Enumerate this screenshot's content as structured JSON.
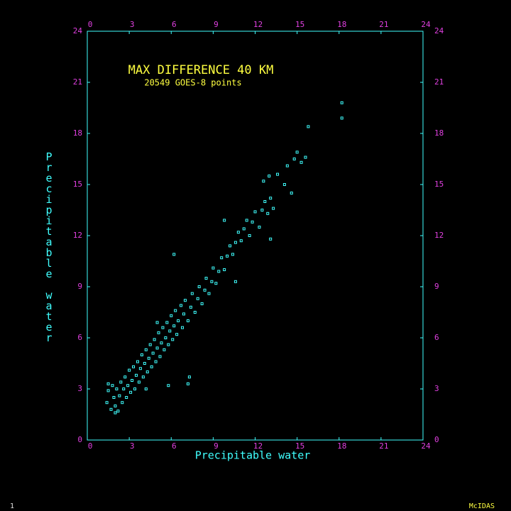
{
  "chart_data": {
    "type": "scatter",
    "title": "MAX DIFFERENCE 40 KM",
    "subtitle": "20549 GOES-8 points",
    "x_label": "Precipitable water",
    "y_label": "Precipitable water",
    "color": "#40ffff",
    "xlim": [
      0,
      24
    ],
    "ylim": [
      0,
      24
    ],
    "xticks": [
      0,
      3,
      6,
      9,
      12,
      15,
      18,
      21,
      24
    ],
    "yticks": [
      0,
      3,
      6,
      9,
      12,
      15,
      18,
      21,
      24
    ],
    "grid": false,
    "x": [
      1.4,
      1.5,
      1.7,
      1.8,
      1.9,
      2.0,
      2.1,
      2.2,
      2.3,
      2.4,
      2.5,
      2.6,
      2.7,
      2.8,
      2.9,
      3.0,
      3.1,
      3.2,
      3.3,
      3.4,
      3.5,
      3.6,
      3.7,
      3.8,
      3.9,
      4.0,
      4.1,
      4.2,
      4.3,
      4.4,
      4.5,
      4.6,
      4.7,
      4.8,
      4.9,
      5.0,
      5.1,
      5.2,
      5.3,
      5.4,
      5.5,
      5.6,
      5.7,
      5.8,
      5.9,
      6.0,
      6.1,
      6.2,
      6.3,
      6.4,
      6.5,
      6.7,
      6.8,
      6.9,
      7.0,
      7.2,
      7.4,
      7.5,
      7.7,
      7.9,
      8.0,
      8.2,
      8.4,
      8.5,
      8.7,
      8.9,
      9.0,
      9.2,
      9.4,
      9.6,
      9.8,
      10.0,
      10.2,
      10.4,
      10.6,
      10.8,
      11.0,
      11.2,
      11.4,
      11.6,
      11.8,
      12.0,
      12.3,
      12.5,
      12.7,
      12.9,
      13.1,
      13.3,
      12.6,
      13.0,
      13.6,
      14.1,
      14.3,
      14.6,
      14.8,
      15.0,
      15.3,
      15.6,
      15.8,
      18.2,
      18.2,
      6.2,
      7.2,
      7.3,
      5.8,
      9.8,
      10.6,
      13.1,
      1.5,
      2.0,
      5.0,
      4.2
    ],
    "y": [
      2.2,
      2.9,
      1.8,
      3.2,
      2.5,
      2.0,
      3.0,
      1.7,
      2.6,
      3.4,
      2.2,
      3.0,
      3.7,
      2.5,
      3.2,
      4.1,
      2.8,
      3.5,
      4.3,
      3.0,
      3.8,
      4.6,
      3.4,
      4.2,
      5.0,
      3.7,
      4.5,
      5.3,
      4.0,
      4.8,
      5.6,
      4.3,
      5.1,
      5.9,
      4.6,
      5.4,
      6.3,
      4.9,
      5.7,
      6.6,
      5.3,
      6.0,
      6.9,
      5.6,
      6.4,
      7.3,
      5.9,
      6.7,
      7.6,
      6.2,
      7.0,
      7.9,
      6.6,
      7.4,
      8.2,
      7.0,
      7.8,
      8.6,
      7.5,
      8.3,
      9.0,
      8.0,
      8.8,
      9.5,
      8.6,
      9.3,
      10.1,
      9.2,
      9.9,
      10.7,
      10.0,
      10.8,
      11.4,
      10.9,
      11.6,
      12.2,
      11.7,
      12.4,
      12.9,
      12.0,
      12.8,
      13.4,
      12.5,
      13.5,
      14.0,
      13.3,
      14.2,
      13.6,
      15.2,
      15.5,
      15.6,
      15.0,
      16.1,
      14.5,
      16.5,
      16.9,
      16.3,
      16.6,
      18.4,
      18.9,
      19.8,
      10.9,
      3.3,
      3.7,
      3.2,
      12.9,
      9.3,
      11.8,
      3.3,
      1.6,
      6.9,
      3.0
    ]
  },
  "footer": {
    "left": "1",
    "right": "McIDAS"
  }
}
